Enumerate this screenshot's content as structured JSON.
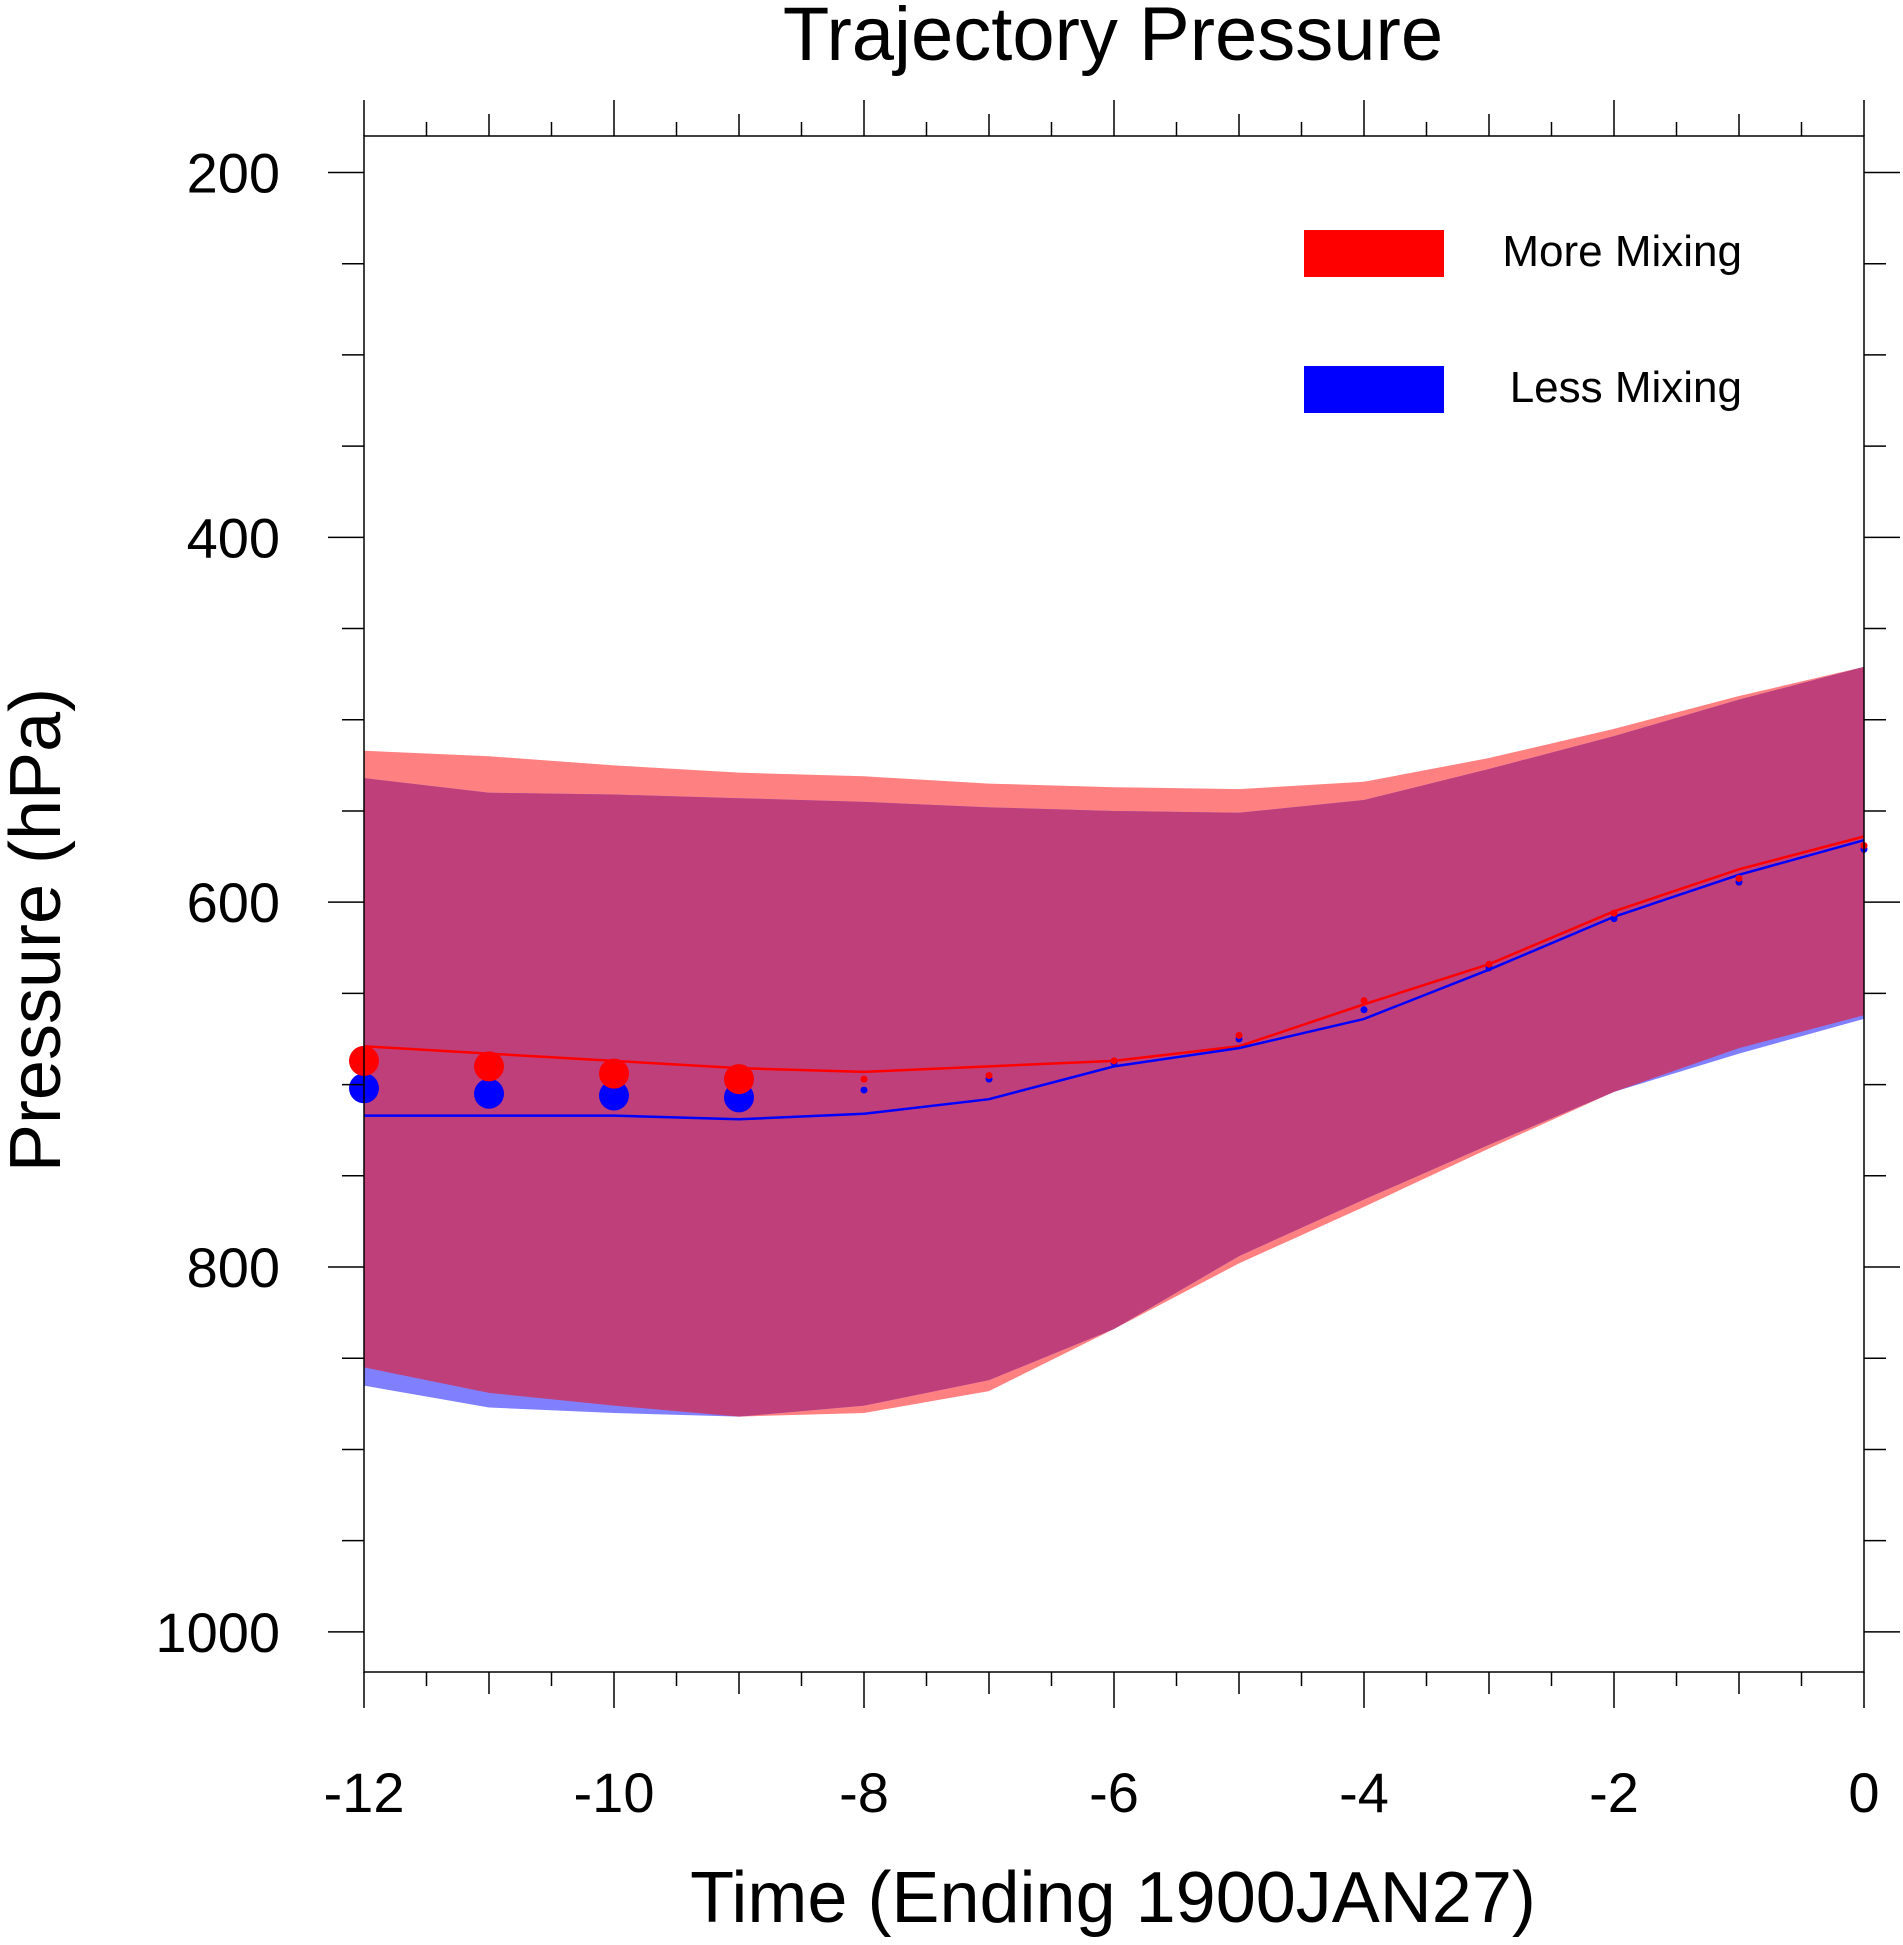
{
  "chart_data": {
    "type": "area",
    "title": "Trajectory Pressure",
    "xlabel": "Time (Ending 1900JAN27)",
    "ylabel": "Pressure (hPa)",
    "xlim": [
      -12,
      0
    ],
    "ylim": [
      180,
      1022
    ],
    "y_inverted": true,
    "x_ticks": [
      -12,
      -10,
      -8,
      -6,
      -4,
      -2,
      0
    ],
    "x_tick_labels": [
      "-12",
      "-10",
      "-8",
      "-6",
      "-4",
      "-2",
      "0"
    ],
    "y_ticks": [
      200,
      400,
      600,
      800,
      1000
    ],
    "y_tick_labels": [
      "200",
      "400",
      "600",
      "800",
      "1000"
    ],
    "x": [
      -12,
      -11,
      -10,
      -9,
      -8,
      -7,
      -6,
      -5,
      -4,
      -3,
      -2,
      -1,
      0
    ],
    "legend_position": "top-right",
    "series": [
      {
        "name": "More Mixing",
        "color": "#ff0000",
        "band_color": "#ff8080",
        "band_upper": [
          517,
          520,
          525,
          529,
          531,
          535,
          537,
          538,
          534,
          521,
          505,
          487,
          471
        ],
        "band_lower": [
          855,
          869,
          876,
          882,
          880,
          868,
          834,
          798,
          767,
          735,
          704,
          680,
          662
        ],
        "mean": [
          679,
          683,
          687,
          691,
          693,
          690,
          687,
          679,
          656,
          634,
          605,
          582,
          564
        ],
        "markers": [
          687,
          690,
          694,
          697,
          697,
          695,
          687,
          673,
          654,
          634,
          606,
          587,
          569
        ],
        "marker_sizes": [
          15,
          15,
          15,
          15,
          3.5,
          3.5,
          3.5,
          3.5,
          3.5,
          3.5,
          3.5,
          3.5,
          3.5
        ]
      },
      {
        "name": "Less Mixing",
        "color": "#0000ff",
        "band_color": "#8080ff",
        "band_upper": [
          532,
          540,
          541,
          543,
          545,
          548,
          550,
          551,
          544,
          527,
          509,
          489,
          471
        ],
        "band_lower": [
          865,
          877,
          880,
          882,
          876,
          862,
          834,
          794,
          763,
          733,
          704,
          683,
          664
        ],
        "mean": [
          717,
          717,
          717,
          719,
          716,
          708,
          690,
          680,
          664,
          637,
          608,
          585,
          566
        ],
        "markers": [
          702,
          705,
          706,
          707,
          703,
          697,
          688,
          675,
          659,
          636,
          609,
          589,
          571
        ],
        "marker_sizes": [
          15,
          15,
          15,
          15,
          3.5,
          3.5,
          3.5,
          3.5,
          3.5,
          3.5,
          3.5,
          3.5,
          3.5
        ]
      }
    ]
  }
}
